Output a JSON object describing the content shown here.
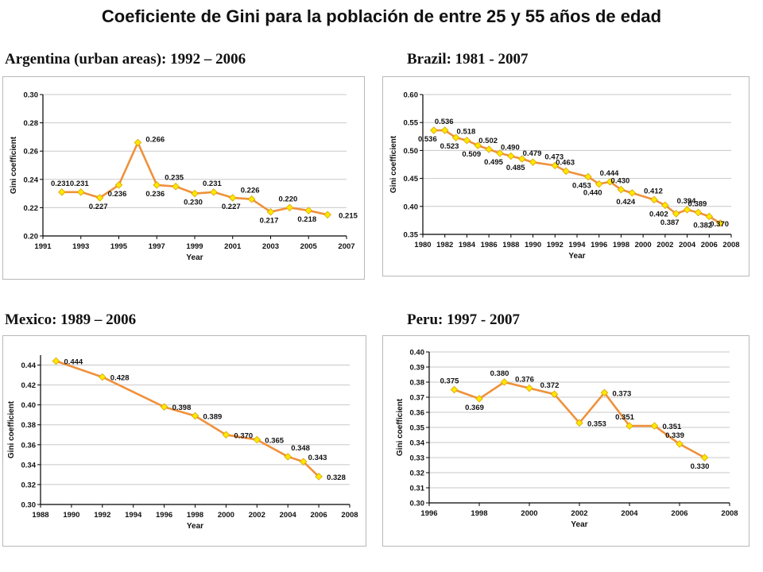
{
  "page": {
    "title": "Coeficiente de Gini para la población de entre 25 y 55 años de edad"
  },
  "style": {
    "line_color": "#f0913b",
    "marker_color": "#ffe800",
    "marker_stroke": "#d9a400",
    "axis_color": "#000000"
  },
  "chart_data": [
    {
      "type": "line",
      "title": "Argentina (urban areas): 1992 – 2006",
      "xlabel": "Year",
      "ylabel": "Gini coefficient",
      "xlim": [
        1991,
        2007
      ],
      "ylim": [
        0.2,
        0.3
      ],
      "xticks": [
        1991,
        1993,
        1995,
        1997,
        1999,
        2001,
        2003,
        2005,
        2007
      ],
      "yticks": [
        0.2,
        0.22,
        0.24,
        0.26,
        0.28,
        0.3
      ],
      "xtick_labels": [
        "1991",
        "1993",
        "1995",
        "1997",
        "1999",
        "2001",
        "2003",
        "2005",
        "2007"
      ],
      "ytick_labels": [
        "0.20",
        "0.22",
        "0.24",
        "0.26",
        "0.28",
        "0.30"
      ],
      "grid": "horizontal",
      "series": [
        {
          "x": [
            1992,
            1993,
            1994,
            1995,
            1996,
            1997,
            1998,
            1999,
            2000,
            2001,
            2002,
            2003,
            2004,
            2005,
            2006
          ],
          "y": [
            0.231,
            0.231,
            0.227,
            0.236,
            0.266,
            0.236,
            0.235,
            0.23,
            0.231,
            0.227,
            0.226,
            0.217,
            0.22,
            0.218,
            0.215
          ],
          "labels": [
            "0.231",
            "0.231",
            "0.227",
            "0.236",
            "0.266",
            "0.236",
            "0.235",
            "0.230",
            "0.231",
            "0.227",
            "0.226",
            "0.217",
            "0.220",
            "0.218",
            "0.215"
          ]
        }
      ]
    },
    {
      "type": "line",
      "title": "Brazil: 1981 - 2007",
      "xlabel": "Year",
      "ylabel": "Gini coefficient",
      "xlim": [
        1980,
        2008
      ],
      "ylim": [
        0.35,
        0.6
      ],
      "xticks": [
        1980,
        1982,
        1984,
        1986,
        1988,
        1990,
        1992,
        1994,
        1996,
        1998,
        2000,
        2002,
        2004,
        2006,
        2008
      ],
      "yticks": [
        0.35,
        0.4,
        0.45,
        0.5,
        0.55,
        0.6
      ],
      "xtick_labels": [
        "1980",
        "1982",
        "1984",
        "1986",
        "1988",
        "1990",
        "1992",
        "1994",
        "1996",
        "1998",
        "2000",
        "2002",
        "2004",
        "2006",
        "2008"
      ],
      "ytick_labels": [
        "0.35",
        "0.40",
        "0.45",
        "0.50",
        "0.55",
        "0.60"
      ],
      "grid": "horizontal",
      "series": [
        {
          "x": [
            1981,
            1982,
            1983,
            1984,
            1985,
            1986,
            1987,
            1988,
            1989,
            1990,
            1992,
            1993,
            1995,
            1996,
            1997,
            1998,
            1999,
            2001,
            2002,
            2003,
            2004,
            2005,
            2006,
            2007
          ],
          "y": [
            0.536,
            0.536,
            0.523,
            0.518,
            0.509,
            0.502,
            0.495,
            0.49,
            0.485,
            0.479,
            0.473,
            0.463,
            0.453,
            0.44,
            0.444,
            0.43,
            0.424,
            0.412,
            0.402,
            0.387,
            0.394,
            0.389,
            0.382,
            0.37
          ],
          "labels": [
            "0.536",
            "0.536",
            "0.523",
            "0.518",
            "0.509",
            "0.502",
            "0.495",
            "0.490",
            "0.485",
            "0.479",
            "0.473",
            "0.463",
            "0.453",
            "0.440",
            "0.444",
            "0.430",
            "0.424",
            "0.412",
            "0.402",
            "0.387",
            "0.394",
            "0.389",
            "0.382",
            "0.370"
          ]
        }
      ]
    },
    {
      "type": "line",
      "title": "Mexico: 1989 – 2006",
      "xlabel": "Year",
      "ylabel": "Gini coefficient",
      "xlim": [
        1988,
        2008
      ],
      "ylim": [
        0.3,
        0.45
      ],
      "xticks": [
        1988,
        1990,
        1992,
        1994,
        1996,
        1998,
        2000,
        2002,
        2004,
        2006,
        2008
      ],
      "yticks": [
        0.3,
        0.32,
        0.34,
        0.36,
        0.38,
        0.4,
        0.42,
        0.44
      ],
      "xtick_labels": [
        "1988",
        "1990",
        "1992",
        "1994",
        "1996",
        "1998",
        "2000",
        "2002",
        "2004",
        "2006",
        "2008"
      ],
      "ytick_labels": [
        "0.30",
        "0.32",
        "0.34",
        "0.36",
        "0.38",
        "0.40",
        "0.42",
        "0.44"
      ],
      "grid": "horizontal",
      "series": [
        {
          "x": [
            1989,
            1992,
            1996,
            1998,
            2000,
            2002,
            2004,
            2005,
            2006
          ],
          "y": [
            0.444,
            0.428,
            0.398,
            0.389,
            0.37,
            0.365,
            0.348,
            0.343,
            0.328
          ],
          "labels": [
            "0.444",
            "0.428",
            "0.398",
            "0.389",
            "0.370",
            "0.365",
            "0.348",
            "0.343",
            "0.328"
          ]
        }
      ]
    },
    {
      "type": "line",
      "title": "Peru: 1997 - 2007",
      "xlabel": "Year",
      "ylabel": "Gini coefficient",
      "xlim": [
        1996,
        2008
      ],
      "ylim": [
        0.3,
        0.4
      ],
      "xticks": [
        1996,
        1998,
        2000,
        2002,
        2004,
        2006,
        2008
      ],
      "yticks": [
        0.3,
        0.31,
        0.32,
        0.33,
        0.34,
        0.35,
        0.36,
        0.37,
        0.38,
        0.39,
        0.4
      ],
      "xtick_labels": [
        "1996",
        "1998",
        "2000",
        "2002",
        "2004",
        "2006",
        "2008"
      ],
      "ytick_labels": [
        "0.30",
        "0.31",
        "0.32",
        "0.33",
        "0.34",
        "0.35",
        "0.36",
        "0.37",
        "0.38",
        "0.39",
        "0.40"
      ],
      "grid": "horizontal",
      "series": [
        {
          "x": [
            1997,
            1998,
            1999,
            2000,
            2001,
            2002,
            2003,
            2004,
            2005,
            2006,
            2007
          ],
          "y": [
            0.375,
            0.369,
            0.38,
            0.376,
            0.372,
            0.353,
            0.373,
            0.351,
            0.351,
            0.339,
            0.33
          ],
          "labels": [
            "0.375",
            "0.369",
            "0.380",
            "0.376",
            "0.372",
            "0.353",
            "0.373",
            "0.351",
            "0.351",
            "0.339",
            "0.330"
          ]
        }
      ]
    }
  ]
}
